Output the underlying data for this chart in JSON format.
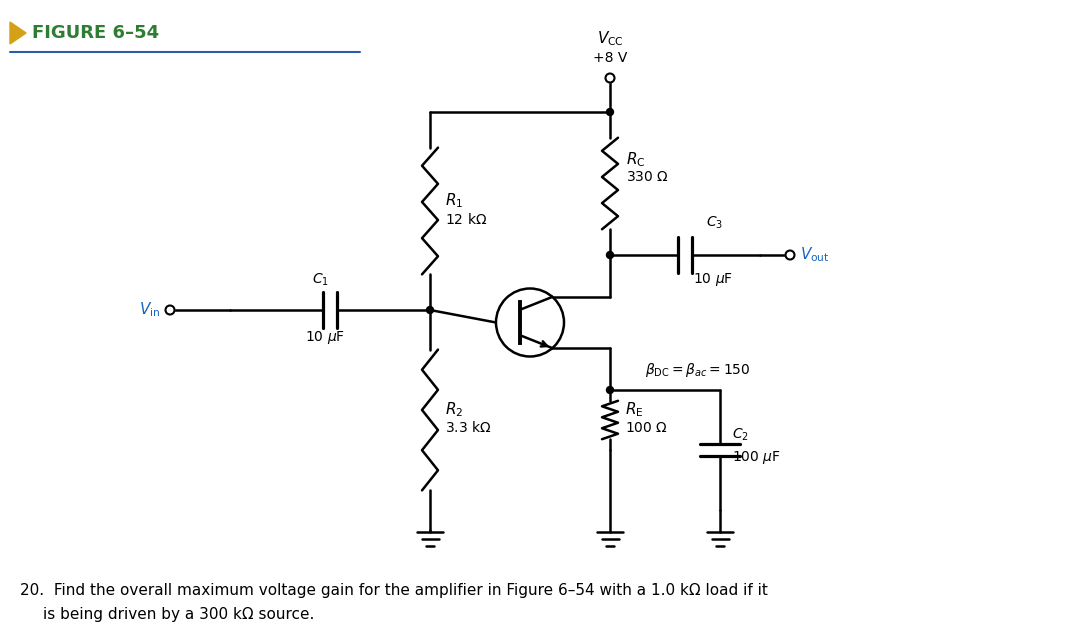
{
  "bg_color": "#ffffff",
  "title_text": "FIGURE 6–54",
  "title_color": "#2e7d32",
  "arrow_color": "#d4a017",
  "line_color": "#1a3a5c",
  "circuit_color": "#000000",
  "blue_line_color": "#2a5ca8",
  "vin_color": "#1565c0",
  "vout_color": "#1565c0",
  "question": "20.  Find the overall maximum voltage gain for the amplifier in Figure 6–54 with a 1.0 kΩ load if it",
  "question2": "is being driven by a 300 kΩ source."
}
